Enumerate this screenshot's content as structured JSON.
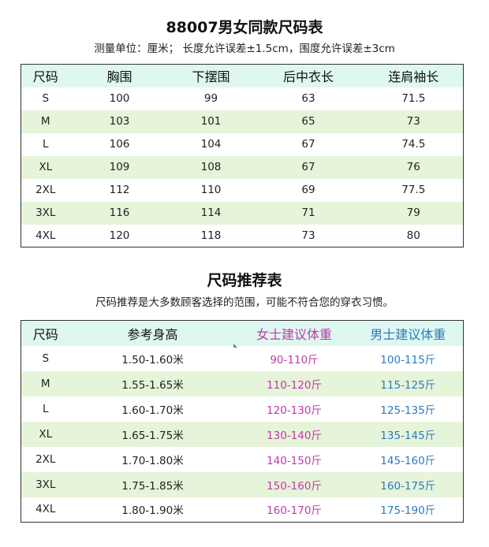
{
  "size_table": {
    "title": "88007男女同款尺码表",
    "subtitle": "测量单位：厘米；  长度允许误差±1.5cm，围度允许误差±3cm",
    "headers": [
      "尺码",
      "胸围",
      "下摆围",
      "后中衣长",
      "连肩袖长"
    ],
    "rows": [
      [
        "S",
        "100",
        "99",
        "63",
        "71.5"
      ],
      [
        "M",
        "103",
        "101",
        "65",
        "73"
      ],
      [
        "L",
        "106",
        "104",
        "67",
        "74.5"
      ],
      [
        "XL",
        "109",
        "108",
        "67",
        "76"
      ],
      [
        "2XL",
        "112",
        "110",
        "69",
        "77.5"
      ],
      [
        "3XL",
        "116",
        "114",
        "71",
        "79"
      ],
      [
        "4XL",
        "120",
        "118",
        "73",
        "80"
      ]
    ]
  },
  "recommend_table": {
    "title": "尺码推荐表",
    "subtitle": "尺码推荐是大多数顾客选择的范围，可能不符合您的穿衣习惯。",
    "headers": [
      "尺码",
      "参考身高",
      "女士建议体重",
      "男士建议体重"
    ],
    "rows": [
      [
        "S",
        "1.50-1.60米",
        "90-110斤",
        "100-115斤"
      ],
      [
        "M",
        "1.55-1.65米",
        "110-120斤",
        "115-125斤"
      ],
      [
        "L",
        "1.60-1.70米",
        "120-130斤",
        "125-135斤"
      ],
      [
        "XL",
        "1.65-1.75米",
        "130-140斤",
        "135-145斤"
      ],
      [
        "2XL",
        "1.70-1.80米",
        "140-150斤",
        "145-160斤"
      ],
      [
        "3XL",
        "1.75-1.85米",
        "150-160斤",
        "160-175斤"
      ],
      [
        "4XL",
        "1.80-1.90米",
        "160-170斤",
        "175-190斤"
      ]
    ]
  },
  "colors": {
    "header_bg": "#dff7f1",
    "stripe_bg": "#e6f4d9",
    "female_text": "#c23aa8",
    "male_text": "#2a7bbf"
  }
}
